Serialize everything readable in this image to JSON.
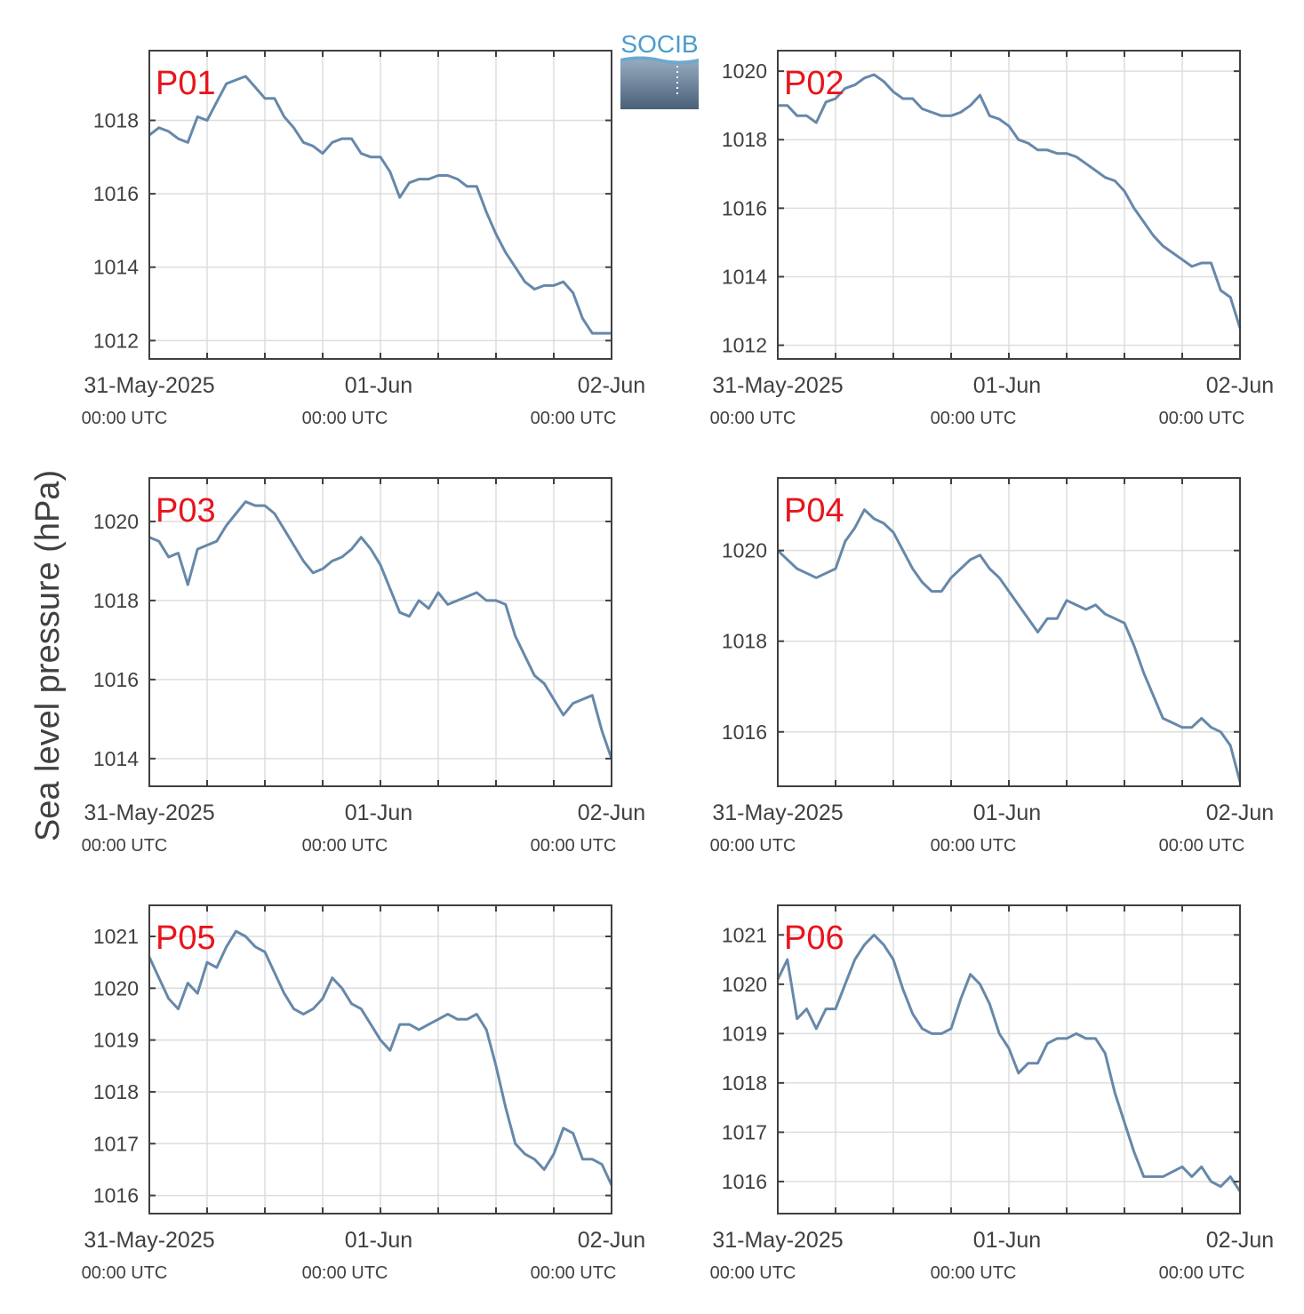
{
  "figure": {
    "ylabel": "Sea level pressure (hPa)",
    "logo_text": "SOCIB",
    "line_color": "#6688aa",
    "label_color": "#e8141c",
    "grid_color": "#dddddd",
    "axis_color": "#404040"
  },
  "chart_data": [
    {
      "type": "line",
      "panel_label": "P01",
      "x_ticks": [
        {
          "label": "31-May-2025",
          "sub": "00:00 UTC"
        },
        {
          "label": "01-Jun",
          "sub": "00:00 UTC"
        },
        {
          "label": "02-Jun",
          "sub": "00:00 UTC"
        }
      ],
      "xlim": [
        "2025-05-31T00:00Z",
        "2025-06-02T00:00Z"
      ],
      "ylim": [
        1011.5,
        1019.9
      ],
      "yticks": [
        1012,
        1014,
        1016,
        1018
      ],
      "series": [
        {
          "x_hours": [
            0,
            1,
            2,
            3,
            4,
            5,
            6,
            7,
            8,
            9,
            10,
            11,
            12,
            13,
            14,
            15,
            16,
            17,
            18,
            19,
            20,
            21,
            22,
            23,
            24,
            25,
            26,
            27,
            28,
            29,
            30,
            31,
            32,
            33,
            34,
            35,
            36,
            37,
            38,
            39,
            40,
            41,
            42,
            43,
            44,
            45,
            46,
            47,
            48
          ],
          "values": [
            1017.6,
            1017.8,
            1017.7,
            1017.5,
            1017.4,
            1018.1,
            1018.0,
            1018.5,
            1019.0,
            1019.1,
            1019.2,
            1018.9,
            1018.6,
            1018.6,
            1018.1,
            1017.8,
            1017.4,
            1017.3,
            1017.1,
            1017.4,
            1017.5,
            1017.5,
            1017.1,
            1017.0,
            1017.0,
            1016.6,
            1015.9,
            1016.3,
            1016.4,
            1016.4,
            1016.5,
            1016.5,
            1016.4,
            1016.2,
            1016.2,
            1015.5,
            1014.9,
            1014.4,
            1014.0,
            1013.6,
            1013.4,
            1013.5,
            1013.5,
            1013.6,
            1013.3,
            1012.6,
            1012.2,
            1012.2,
            1012.2
          ]
        }
      ]
    },
    {
      "type": "line",
      "panel_label": "P02",
      "x_ticks": [
        {
          "label": "31-May-2025",
          "sub": "00:00 UTC"
        },
        {
          "label": "01-Jun",
          "sub": "00:00 UTC"
        },
        {
          "label": "02-Jun",
          "sub": "00:00 UTC"
        }
      ],
      "xlim": [
        "2025-05-31T00:00Z",
        "2025-06-02T00:00Z"
      ],
      "ylim": [
        1011.6,
        1020.6
      ],
      "yticks": [
        1012,
        1014,
        1016,
        1018,
        1020
      ],
      "series": [
        {
          "x_hours": [
            0,
            1,
            2,
            3,
            4,
            5,
            6,
            7,
            8,
            9,
            10,
            11,
            12,
            13,
            14,
            15,
            16,
            17,
            18,
            19,
            20,
            21,
            22,
            23,
            24,
            25,
            26,
            27,
            28,
            29,
            30,
            31,
            32,
            33,
            34,
            35,
            36,
            37,
            38,
            39,
            40,
            41,
            42,
            43,
            44,
            45,
            46,
            47,
            48
          ],
          "values": [
            1019.0,
            1019.0,
            1018.7,
            1018.7,
            1018.5,
            1019.1,
            1019.2,
            1019.5,
            1019.6,
            1019.8,
            1019.9,
            1019.7,
            1019.4,
            1019.2,
            1019.2,
            1018.9,
            1018.8,
            1018.7,
            1018.7,
            1018.8,
            1019.0,
            1019.3,
            1018.7,
            1018.6,
            1018.4,
            1018.0,
            1017.9,
            1017.7,
            1017.7,
            1017.6,
            1017.6,
            1017.5,
            1017.3,
            1017.1,
            1016.9,
            1016.8,
            1016.5,
            1016.0,
            1015.6,
            1015.2,
            1014.9,
            1014.7,
            1014.5,
            1014.3,
            1014.4,
            1014.4,
            1013.6,
            1013.4,
            1012.5
          ]
        }
      ]
    },
    {
      "type": "line",
      "panel_label": "P03",
      "x_ticks": [
        {
          "label": "31-May-2025",
          "sub": "00:00 UTC"
        },
        {
          "label": "01-Jun",
          "sub": "00:00 UTC"
        },
        {
          "label": "02-Jun",
          "sub": "00:00 UTC"
        }
      ],
      "xlim": [
        "2025-05-31T00:00Z",
        "2025-06-02T00:00Z"
      ],
      "ylim": [
        1013.3,
        1021.1
      ],
      "yticks": [
        1014,
        1016,
        1018,
        1020
      ],
      "series": [
        {
          "x_hours": [
            0,
            1,
            2,
            3,
            4,
            5,
            6,
            7,
            8,
            9,
            10,
            11,
            12,
            13,
            14,
            15,
            16,
            17,
            18,
            19,
            20,
            21,
            22,
            23,
            24,
            25,
            26,
            27,
            28,
            29,
            30,
            31,
            32,
            33,
            34,
            35,
            36,
            37,
            38,
            39,
            40,
            41,
            42,
            43,
            44,
            45,
            46,
            47,
            48
          ],
          "values": [
            1019.6,
            1019.5,
            1019.1,
            1019.2,
            1018.4,
            1019.3,
            1019.4,
            1019.5,
            1019.9,
            1020.2,
            1020.5,
            1020.4,
            1020.4,
            1020.2,
            1019.8,
            1019.4,
            1019.0,
            1018.7,
            1018.8,
            1019.0,
            1019.1,
            1019.3,
            1019.6,
            1019.3,
            1018.9,
            1018.3,
            1017.7,
            1017.6,
            1018.0,
            1017.8,
            1018.2,
            1017.9,
            1018.0,
            1018.1,
            1018.2,
            1018.0,
            1018.0,
            1017.9,
            1017.1,
            1016.6,
            1016.1,
            1015.9,
            1015.5,
            1015.1,
            1015.4,
            1015.5,
            1015.6,
            1014.7,
            1014.0
          ]
        }
      ]
    },
    {
      "type": "line",
      "panel_label": "P04",
      "x_ticks": [
        {
          "label": "31-May-2025",
          "sub": "00:00 UTC"
        },
        {
          "label": "01-Jun",
          "sub": "00:00 UTC"
        },
        {
          "label": "02-Jun",
          "sub": "00:00 UTC"
        }
      ],
      "xlim": [
        "2025-05-31T00:00Z",
        "2025-06-02T00:00Z"
      ],
      "ylim": [
        1014.8,
        1021.6
      ],
      "yticks": [
        1016,
        1018,
        1020
      ],
      "series": [
        {
          "x_hours": [
            0,
            1,
            2,
            3,
            4,
            5,
            6,
            7,
            8,
            9,
            10,
            11,
            12,
            13,
            14,
            15,
            16,
            17,
            18,
            19,
            20,
            21,
            22,
            23,
            24,
            25,
            26,
            27,
            28,
            29,
            30,
            31,
            32,
            33,
            34,
            35,
            36,
            37,
            38,
            39,
            40,
            41,
            42,
            43,
            44,
            45,
            46,
            47,
            48
          ],
          "values": [
            1020.0,
            1019.8,
            1019.6,
            1019.5,
            1019.4,
            1019.5,
            1019.6,
            1020.2,
            1020.5,
            1020.9,
            1020.7,
            1020.6,
            1020.4,
            1020.0,
            1019.6,
            1019.3,
            1019.1,
            1019.1,
            1019.4,
            1019.6,
            1019.8,
            1019.9,
            1019.6,
            1019.4,
            1019.1,
            1018.8,
            1018.5,
            1018.2,
            1018.5,
            1018.5,
            1018.9,
            1018.8,
            1018.7,
            1018.8,
            1018.6,
            1018.5,
            1018.4,
            1017.9,
            1017.3,
            1016.8,
            1016.3,
            1016.2,
            1016.1,
            1016.1,
            1016.3,
            1016.1,
            1016.0,
            1015.7,
            1014.9
          ]
        }
      ]
    },
    {
      "type": "line",
      "panel_label": "P05",
      "x_ticks": [
        {
          "label": "31-May-2025",
          "sub": "00:00 UTC"
        },
        {
          "label": "01-Jun",
          "sub": "00:00 UTC"
        },
        {
          "label": "02-Jun",
          "sub": "00:00 UTC"
        }
      ],
      "xlim": [
        "2025-05-31T00:00Z",
        "2025-06-02T00:00Z"
      ],
      "ylim": [
        1015.65,
        1021.6
      ],
      "yticks": [
        1016,
        1017,
        1018,
        1019,
        1020,
        1021
      ],
      "series": [
        {
          "x_hours": [
            0,
            1,
            2,
            3,
            4,
            5,
            6,
            7,
            8,
            9,
            10,
            11,
            12,
            13,
            14,
            15,
            16,
            17,
            18,
            19,
            20,
            21,
            22,
            23,
            24,
            25,
            26,
            27,
            28,
            29,
            30,
            31,
            32,
            33,
            34,
            35,
            36,
            37,
            38,
            39,
            40,
            41,
            42,
            43,
            44,
            45,
            46,
            47,
            48
          ],
          "values": [
            1020.6,
            1020.2,
            1019.8,
            1019.6,
            1020.1,
            1019.9,
            1020.5,
            1020.4,
            1020.8,
            1021.1,
            1021.0,
            1020.8,
            1020.7,
            1020.3,
            1019.9,
            1019.6,
            1019.5,
            1019.6,
            1019.8,
            1020.2,
            1020.0,
            1019.7,
            1019.6,
            1019.3,
            1019.0,
            1018.8,
            1019.3,
            1019.3,
            1019.2,
            1019.3,
            1019.4,
            1019.5,
            1019.4,
            1019.4,
            1019.5,
            1019.2,
            1018.5,
            1017.7,
            1017.0,
            1016.8,
            1016.7,
            1016.5,
            1016.8,
            1017.3,
            1017.2,
            1016.7,
            1016.7,
            1016.6,
            1016.2
          ]
        }
      ]
    },
    {
      "type": "line",
      "panel_label": "P06",
      "x_ticks": [
        {
          "label": "31-May-2025",
          "sub": "00:00 UTC"
        },
        {
          "label": "01-Jun",
          "sub": "00:00 UTC"
        },
        {
          "label": "02-Jun",
          "sub": "00:00 UTC"
        }
      ],
      "xlim": [
        "2025-05-31T00:00Z",
        "2025-06-02T00:00Z"
      ],
      "ylim": [
        1015.35,
        1021.6
      ],
      "yticks": [
        1016,
        1017,
        1018,
        1019,
        1020,
        1021
      ],
      "series": [
        {
          "x_hours": [
            0,
            1,
            2,
            3,
            4,
            5,
            6,
            7,
            8,
            9,
            10,
            11,
            12,
            13,
            14,
            15,
            16,
            17,
            18,
            19,
            20,
            21,
            22,
            23,
            24,
            25,
            26,
            27,
            28,
            29,
            30,
            31,
            32,
            33,
            34,
            35,
            36,
            37,
            38,
            39,
            40,
            41,
            42,
            43,
            44,
            45,
            46,
            47,
            48
          ],
          "values": [
            1020.1,
            1020.5,
            1019.3,
            1019.5,
            1019.1,
            1019.5,
            1019.5,
            1020.0,
            1020.5,
            1020.8,
            1021.0,
            1020.8,
            1020.5,
            1019.9,
            1019.4,
            1019.1,
            1019.0,
            1019.0,
            1019.1,
            1019.7,
            1020.2,
            1020.0,
            1019.6,
            1019.0,
            1018.7,
            1018.2,
            1018.4,
            1018.4,
            1018.8,
            1018.9,
            1018.9,
            1019.0,
            1018.9,
            1018.9,
            1018.6,
            1017.8,
            1017.2,
            1016.6,
            1016.1,
            1016.1,
            1016.1,
            1016.2,
            1016.3,
            1016.1,
            1016.3,
            1016.0,
            1015.9,
            1016.1,
            1015.8
          ]
        }
      ]
    }
  ]
}
